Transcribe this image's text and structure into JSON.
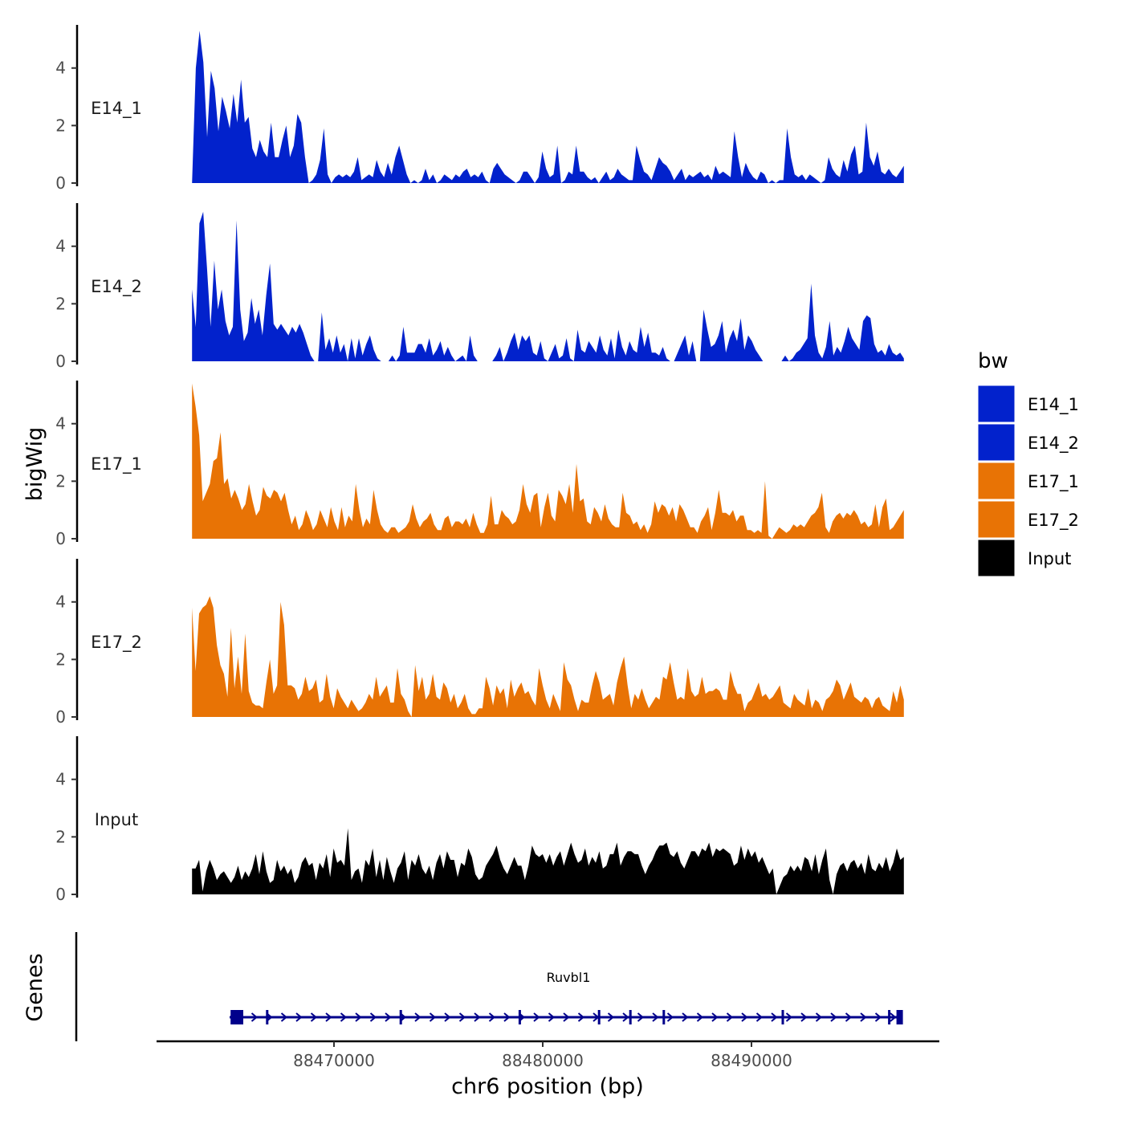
{
  "colors": {
    "E14": "#0222CC",
    "E17": "#E87305",
    "Input": "#000000",
    "gene": "#00008B",
    "axis": "#000000"
  },
  "chart_data": {
    "type": "area",
    "title": "",
    "ylabel": "bigWig",
    "xlabel": "chr6 position (bp)",
    "ylim": [
      0,
      5.5
    ],
    "y_ticks": [
      "0",
      "2",
      "4"
    ],
    "xlim": [
      88461500,
      88499000
    ],
    "x_ticks": [
      "88470000",
      "88480000",
      "88490000"
    ],
    "x_tick_values": [
      88470000,
      88480000,
      88490000
    ],
    "data_xrange": [
      88463200,
      88497300
    ],
    "legend": {
      "title": "bw",
      "position": "right",
      "entries": [
        {
          "label": "E14_1",
          "color": "#0222CC"
        },
        {
          "label": "E14_2",
          "color": "#0222CC"
        },
        {
          "label": "E17_1",
          "color": "#E87305"
        },
        {
          "label": "E17_2",
          "color": "#E87305"
        },
        {
          "label": "Input",
          "color": "#000000"
        }
      ]
    },
    "series": [
      {
        "name": "E14_1",
        "color": "#0222CC",
        "values": [
          0,
          4.0,
          5.3,
          4.2,
          1.6,
          3.9,
          3.3,
          1.8,
          3.0,
          2.5,
          1.9,
          3.1,
          2.1,
          3.6,
          2.1,
          2.3,
          1.2,
          0.9,
          1.5,
          1.1,
          0.9,
          2.1,
          0.9,
          0.9,
          1.5,
          2.0,
          0.9,
          1.3,
          2.4,
          2.1,
          0.9,
          0,
          0.1,
          0.3,
          0.8,
          1.9,
          0.3,
          0,
          0.2,
          0.3,
          0.2,
          0.3,
          0.2,
          0.4,
          0.9,
          0.1,
          0.2,
          0.3,
          0.2,
          0.8,
          0.4,
          0.2,
          0.7,
          0.3,
          0.9,
          1.3,
          0.8,
          0.3,
          0,
          0.1,
          0,
          0.1,
          0.5,
          0.1,
          0.3,
          0,
          0.1,
          0.3,
          0.2,
          0.1,
          0.3,
          0.2,
          0.4,
          0.5,
          0.2,
          0.3,
          0.2,
          0.4,
          0.1,
          0,
          0.5,
          0.7,
          0.5,
          0.3,
          0.2,
          0.1,
          0,
          0.1,
          0.4,
          0.4,
          0.2,
          0,
          0.2,
          1.1,
          0.5,
          0.2,
          0.3,
          1.3,
          0,
          0.1,
          0.4,
          0.3,
          1.3,
          0.4,
          0.4,
          0.2,
          0.1,
          0.2,
          0,
          0.2,
          0.4,
          0.1,
          0.2,
          0.5,
          0.3,
          0.2,
          0.1,
          0.1,
          1.3,
          0.8,
          0.4,
          0.3,
          0.1,
          0.5,
          0.9,
          0.7,
          0.6,
          0.4,
          0.1,
          0.3,
          0.5,
          0.1,
          0.3,
          0.2,
          0.3,
          0.4,
          0.2,
          0.3,
          0.1,
          0.6,
          0.3,
          0.4,
          0.3,
          0.2,
          1.8,
          0.9,
          0.2,
          0.7,
          0.4,
          0.2,
          0.1,
          0.4,
          0.3,
          0,
          0.1,
          0,
          0.1,
          0.1,
          1.9,
          0.9,
          0.3,
          0.2,
          0.3,
          0.1,
          0.3,
          0.2,
          0.1,
          0,
          0.1,
          0.9,
          0.5,
          0.3,
          0.2,
          0.8,
          0.4,
          1.0,
          1.3,
          0.3,
          0.4,
          2.1,
          0.9,
          0.6,
          1.1,
          0.4,
          0.3,
          0.5,
          0.3,
          0.2,
          0.4,
          0.6
        ]
      },
      {
        "name": "E14_2",
        "color": "#0222CC",
        "values": [
          2.5,
          1.2,
          4.8,
          5.2,
          3.3,
          1.2,
          3.5,
          1.8,
          2.5,
          1.4,
          0.9,
          1.2,
          4.9,
          1.8,
          0.7,
          1.0,
          2.2,
          1.3,
          1.8,
          0.9,
          2.3,
          3.4,
          1.3,
          1.1,
          1.3,
          1.1,
          0.9,
          1.2,
          1.0,
          1.3,
          1.0,
          0.6,
          0.2,
          0,
          0,
          1.7,
          0.4,
          0.8,
          0.3,
          0.9,
          0.3,
          0.6,
          0,
          0.8,
          0.1,
          0.8,
          0.2,
          0.6,
          0.9,
          0.4,
          0.1,
          0,
          0,
          0,
          0.2,
          0,
          0.2,
          1.2,
          0.3,
          0.3,
          0.3,
          0.6,
          0.6,
          0.3,
          0.8,
          0.2,
          0.4,
          0.7,
          0.2,
          0.5,
          0.2,
          0,
          0.1,
          0.2,
          0,
          0.9,
          0.2,
          0,
          0,
          0,
          0,
          0,
          0.2,
          0.5,
          0,
          0.3,
          0.7,
          1.0,
          0.4,
          0.9,
          0.7,
          0.9,
          0.3,
          0.2,
          0.7,
          0.1,
          0,
          0.3,
          0.6,
          0.1,
          0.2,
          0.8,
          0.1,
          0,
          1.1,
          0.4,
          0.3,
          0.7,
          0.5,
          0.3,
          0.9,
          0.4,
          0.2,
          0.8,
          0.1,
          1.1,
          0.5,
          0.2,
          0.7,
          0.4,
          0.3,
          1.2,
          0.5,
          1.0,
          0.3,
          0.3,
          0.2,
          0.5,
          0.1,
          0,
          0,
          0.3,
          0.6,
          0.9,
          0.2,
          0.7,
          0,
          0,
          1.8,
          1.1,
          0.5,
          0.6,
          0.9,
          1.4,
          0.3,
          0.8,
          1.1,
          0.7,
          1.5,
          0.4,
          0.9,
          0.7,
          0.4,
          0.2,
          0,
          0,
          0,
          0,
          0,
          0,
          0.2,
          0,
          0.1,
          0.3,
          0.4,
          0.6,
          0.8,
          2.7,
          0.9,
          0.3,
          0.1,
          0.5,
          1.4,
          0.2,
          0.5,
          0.3,
          0.7,
          1.2,
          0.8,
          0.6,
          0.4,
          1.4,
          1.6,
          1.5,
          0.6,
          0.3,
          0.4,
          0.2,
          0.6,
          0.3,
          0.2,
          0.3,
          0.1
        ]
      },
      {
        "name": "E17_1",
        "color": "#E87305",
        "values": [
          5.4,
          4.6,
          3.6,
          1.3,
          1.6,
          1.9,
          2.7,
          2.8,
          3.7,
          1.9,
          2.1,
          1.4,
          1.7,
          1.4,
          1.0,
          1.2,
          1.9,
          1.3,
          0.8,
          1.0,
          1.8,
          1.5,
          1.4,
          1.7,
          1.6,
          1.3,
          1.6,
          1.0,
          0.5,
          0.8,
          0.3,
          0.5,
          1.0,
          0.7,
          0.3,
          0.5,
          1.0,
          0.7,
          0.4,
          1.1,
          0.6,
          0.3,
          1.1,
          0.4,
          0.8,
          0.6,
          1.9,
          1.0,
          0.4,
          0.7,
          0.5,
          1.7,
          1.0,
          0.5,
          0.3,
          0.2,
          0.4,
          0.4,
          0.2,
          0.3,
          0.4,
          0.6,
          1.2,
          0.7,
          0.4,
          0.6,
          0.7,
          0.9,
          0.5,
          0.3,
          0.3,
          0.7,
          0.8,
          0.4,
          0.6,
          0.6,
          0.5,
          0.7,
          0.4,
          0.9,
          0.5,
          0.2,
          0.2,
          0.5,
          1.5,
          0.5,
          0.5,
          1.0,
          0.8,
          0.7,
          0.5,
          0.6,
          1.0,
          1.9,
          1.2,
          0.9,
          1.5,
          1.6,
          0.4,
          1.1,
          1.6,
          0.8,
          0.6,
          1.7,
          1.5,
          1.2,
          1.9,
          0.9,
          2.6,
          1.3,
          1.4,
          0.6,
          0.5,
          1.1,
          0.9,
          0.6,
          1.2,
          0.7,
          0.5,
          0.4,
          0.4,
          1.6,
          0.9,
          0.8,
          0.5,
          0.6,
          0.3,
          0.5,
          0.2,
          0.5,
          1.3,
          0.9,
          1.2,
          1.1,
          0.8,
          1.1,
          0.6,
          1.2,
          1.0,
          0.7,
          0.4,
          0.4,
          0.2,
          0.6,
          0.8,
          1.1,
          0.3,
          0.9,
          1.7,
          0.9,
          0.9,
          0.8,
          1.0,
          0.6,
          0.8,
          0.8,
          0.3,
          0.3,
          0.2,
          0.3,
          0.2,
          2.0,
          0.1,
          0,
          0.2,
          0.4,
          0.3,
          0.2,
          0.3,
          0.5,
          0.4,
          0.5,
          0.4,
          0.6,
          0.8,
          0.9,
          1.1,
          1.6,
          0.4,
          0.2,
          0.6,
          0.8,
          0.9,
          0.7,
          0.9,
          0.8,
          1.0,
          0.8,
          0.5,
          0.6,
          0.4,
          0.5,
          1.2,
          0.4,
          1.1,
          1.4,
          0.3,
          0.4,
          0.6,
          0.8,
          1.0
        ]
      },
      {
        "name": "E17_2",
        "color": "#E87305",
        "values": [
          3.8,
          1.6,
          3.6,
          3.8,
          3.9,
          4.2,
          3.8,
          2.5,
          1.8,
          1.5,
          0.7,
          3.1,
          1.0,
          2.1,
          0.8,
          2.9,
          0.9,
          0.5,
          0.4,
          0.4,
          0.3,
          1.2,
          2.0,
          0.8,
          1.1,
          4.0,
          3.2,
          1.1,
          1.1,
          1.0,
          0.6,
          0.8,
          1.4,
          0.9,
          1.0,
          1.3,
          0.5,
          0.6,
          1.5,
          0.7,
          0.3,
          1.0,
          0.7,
          0.5,
          0.3,
          0.6,
          0.4,
          0.2,
          0.3,
          0.5,
          0.8,
          0.6,
          1.4,
          0.7,
          0.9,
          1.1,
          0.5,
          0.5,
          1.7,
          0.8,
          0.6,
          0.2,
          0,
          1.8,
          0.9,
          1.4,
          0.6,
          0.8,
          1.5,
          0.7,
          0.6,
          1.2,
          1.0,
          0.5,
          0.8,
          0.3,
          0.5,
          0.8,
          0.3,
          0.1,
          0.1,
          0.3,
          0.3,
          1.4,
          1.0,
          0.4,
          1.1,
          0.8,
          1.0,
          0.3,
          1.3,
          0.7,
          1.0,
          1.2,
          0.8,
          0.9,
          0.6,
          0.4,
          1.7,
          1.1,
          0.6,
          0.3,
          0.8,
          0.5,
          0.2,
          1.9,
          1.3,
          1.1,
          0.6,
          0.2,
          0.6,
          0.5,
          0.5,
          1.1,
          1.6,
          1.2,
          0.6,
          0.7,
          0.8,
          0.4,
          1.2,
          1.7,
          2.1,
          1.1,
          0.3,
          0.8,
          0.6,
          1.0,
          0.6,
          0.3,
          0.5,
          0.7,
          0.6,
          1.4,
          1.3,
          1.9,
          1.2,
          0.6,
          0.7,
          0.6,
          1.7,
          0.9,
          0.7,
          0.8,
          1.4,
          0.8,
          0.9,
          0.9,
          1.0,
          0.9,
          0.6,
          0.6,
          1.6,
          1.1,
          0.8,
          0.8,
          0.2,
          0.5,
          0.6,
          0.9,
          1.2,
          0.7,
          0.8,
          0.6,
          0.7,
          0.9,
          1.1,
          0.5,
          0.4,
          0.3,
          0.8,
          0.6,
          0.5,
          0.4,
          1.0,
          0.3,
          0.6,
          0.5,
          0.2,
          0.6,
          0.7,
          0.9,
          1.3,
          1.1,
          0.6,
          0.9,
          1.2,
          0.7,
          0.6,
          0.5,
          0.7,
          0.6,
          0.3,
          0.6,
          0.7,
          0.4,
          0.3,
          0.2,
          0.9,
          0.5,
          1.1,
          0.6
        ]
      },
      {
        "name": "Input",
        "color": "#000000",
        "values": [
          0.9,
          0.9,
          1.2,
          0.1,
          0.8,
          1.2,
          0.9,
          0.5,
          0.7,
          0.8,
          0.6,
          0.4,
          0.6,
          1.0,
          0.5,
          0.8,
          0.6,
          0.9,
          1.4,
          0.7,
          1.5,
          0.8,
          0.4,
          0.5,
          1.2,
          0.8,
          1.0,
          0.7,
          0.9,
          0.4,
          0.6,
          1.1,
          1.3,
          1.0,
          1.1,
          0.5,
          1.1,
          0.9,
          1.4,
          0.6,
          1.6,
          1.1,
          1.2,
          1.0,
          2.3,
          0.5,
          0.8,
          0.9,
          0.4,
          1.2,
          1.0,
          1.6,
          0.6,
          1.2,
          0.5,
          1.3,
          0.8,
          0.4,
          0.9,
          1.1,
          1.5,
          0.5,
          1.2,
          1.0,
          1.4,
          0.9,
          0.7,
          1.0,
          0.5,
          1.1,
          1.4,
          0.9,
          1.5,
          1.2,
          1.2,
          0.6,
          1.1,
          1.0,
          1.6,
          1.3,
          0.7,
          0.5,
          0.6,
          1.0,
          1.2,
          1.4,
          1.7,
          1.2,
          0.9,
          0.7,
          1.0,
          1.3,
          1.0,
          1.0,
          0.5,
          1.0,
          1.7,
          1.4,
          1.3,
          1.4,
          1.1,
          1.4,
          1.0,
          1.3,
          1.5,
          1.0,
          1.4,
          1.8,
          1.4,
          1.1,
          1.2,
          1.6,
          1.0,
          1.3,
          1.1,
          1.5,
          0.9,
          1.0,
          1.4,
          1.4,
          1.8,
          1.0,
          1.3,
          1.5,
          1.5,
          1.4,
          1.4,
          1.0,
          0.7,
          1.0,
          1.2,
          1.5,
          1.7,
          1.7,
          1.8,
          1.4,
          1.3,
          1.5,
          1.1,
          0.9,
          1.2,
          1.5,
          1.5,
          1.3,
          1.6,
          1.5,
          1.8,
          1.3,
          1.6,
          1.5,
          1.6,
          1.5,
          1.4,
          1.0,
          1.1,
          1.7,
          1.2,
          1.6,
          1.3,
          1.5,
          1.1,
          1.3,
          1.0,
          0.7,
          0.9,
          0,
          0.3,
          0.6,
          0.7,
          1.0,
          0.8,
          1.0,
          0.8,
          1.3,
          1.2,
          0.8,
          1.4,
          0.7,
          1.2,
          1.6,
          0.5,
          0,
          0.7,
          1.0,
          1.1,
          0.8,
          1.1,
          1.2,
          0.9,
          1.1,
          0.7,
          1.4,
          0.9,
          0.8,
          1.1,
          0.9,
          1.3,
          0.8,
          1.1,
          1.6,
          1.2,
          1.3
        ]
      }
    ],
    "gene_track": {
      "label": "Genes",
      "gene": {
        "name": "Ruvbl1",
        "start": 88465000,
        "end": 88497200,
        "strand": "+"
      },
      "exons": [
        88465200,
        88465500,
        88466800,
        88473200,
        88478900,
        88482700,
        88484200,
        88485800,
        88491500,
        88496600,
        88497100
      ]
    }
  }
}
